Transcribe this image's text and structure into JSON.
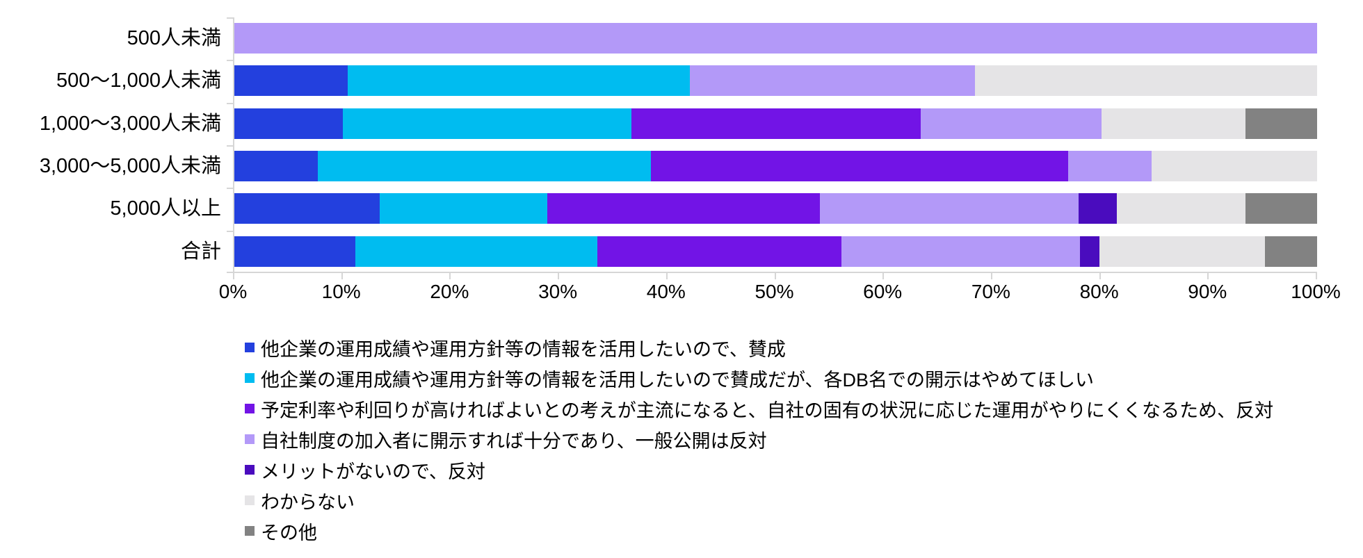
{
  "chart_data": {
    "type": "bar",
    "stacked": true,
    "orientation": "horizontal",
    "value_format": "percent",
    "title": "",
    "xlabel": "",
    "ylabel": "",
    "xlim": [
      0,
      100
    ],
    "x_ticks": [
      "0%",
      "10%",
      "20%",
      "30%",
      "40%",
      "50%",
      "60%",
      "70%",
      "80%",
      "90%",
      "100%"
    ],
    "grid": false,
    "legend_position": "bottom-left",
    "categories": [
      "500人未満",
      "500〜1,000人未満",
      "1,000〜3,000人未満",
      "3,000〜5,000人未満",
      "5,000人以上",
      "合計"
    ],
    "series": [
      {
        "name": "他企業の運用成績や運用方針等の情報を活用したいので、賛成",
        "color": "#2340de",
        "values": [
          0,
          10.5,
          10.0,
          7.7,
          13.4,
          11.2
        ]
      },
      {
        "name": "他企業の運用成績や運用方針等の情報を活用したいので賛成だが、各DB名での開示はやめてほしい",
        "color": "#00bcf0",
        "values": [
          0,
          31.6,
          26.7,
          30.8,
          15.5,
          22.3
        ]
      },
      {
        "name": "予定利率や利回りが高ければよいとの考えが主流になると、自社の固有の状況に応じた運用がやりにくくなるため、反対",
        "color": "#7214e6",
        "values": [
          0,
          0,
          26.7,
          38.5,
          25.2,
          22.6
        ]
      },
      {
        "name": "自社制度の加入者に開示すれば十分であり、一般公開は反対",
        "color": "#b399f8",
        "values": [
          100,
          26.3,
          16.7,
          7.7,
          23.9,
          22.0
        ]
      },
      {
        "name": "メリットがないので、反対",
        "color": "#4a0cbe",
        "values": [
          0,
          0,
          0,
          0,
          3.5,
          1.8
        ]
      },
      {
        "name": "わからない",
        "color": "#e5e4e6",
        "values": [
          0,
          31.6,
          13.3,
          15.4,
          11.9,
          15.3
        ]
      },
      {
        "name": "その他",
        "color": "#828282",
        "values": [
          0,
          0,
          6.7,
          0,
          6.6,
          4.8
        ]
      }
    ]
  },
  "colors": {
    "axis": "#d6d6d6",
    "text": "#000000",
    "background": "#ffffff"
  }
}
